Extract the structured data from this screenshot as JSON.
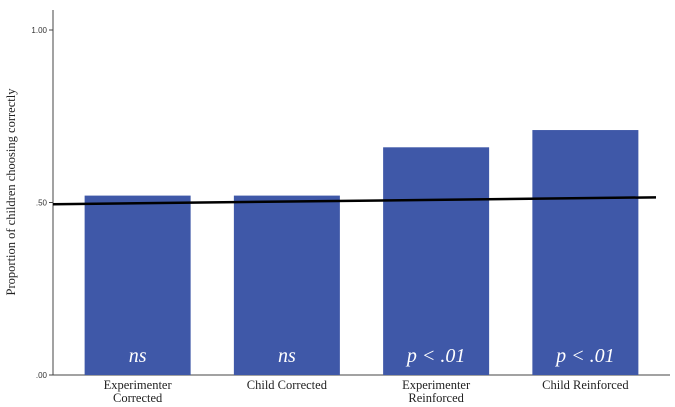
{
  "chart_data": {
    "type": "bar",
    "categories": [
      [
        "Experimenter",
        "Corrected"
      ],
      [
        "Child Corrected"
      ],
      [
        "Experimenter",
        "Reinforced"
      ],
      [
        "Child Reinforced"
      ]
    ],
    "values": [
      0.52,
      0.52,
      0.66,
      0.71
    ],
    "annotations": [
      "ns",
      "ns",
      "p < .01",
      "p < .01"
    ],
    "ylabel": "Proportion of children choosing correctly",
    "xlabel": "",
    "ylim": [
      0,
      1
    ],
    "yticks": [
      0,
      0.5,
      1
    ],
    "ytick_labels": [
      ".00",
      ".50",
      "1.00"
    ],
    "reference_line": {
      "from": 0.495,
      "to": 0.515
    },
    "grid": false,
    "colors": {
      "bar": "#3f58a8",
      "reference_line": "#000000",
      "annotation": "#ffffff"
    }
  }
}
